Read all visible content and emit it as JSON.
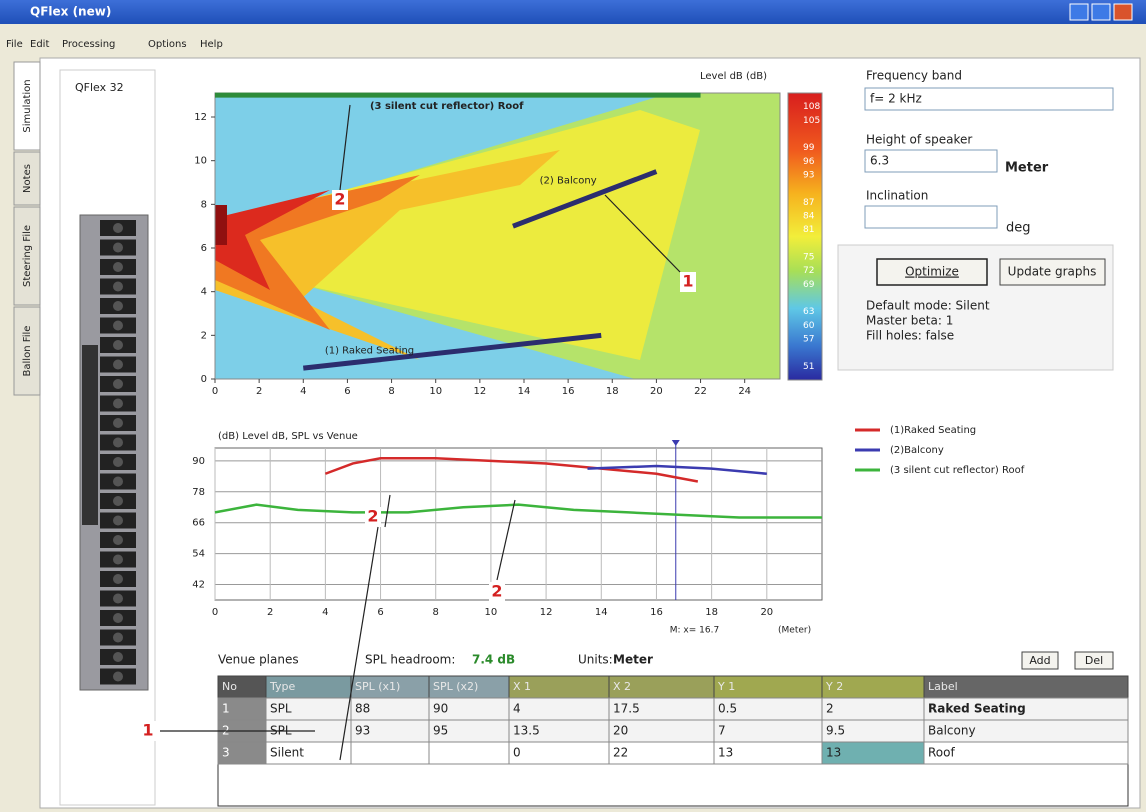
{
  "window": {
    "title": "QFlex  (new)"
  },
  "menu": [
    "File",
    "Edit",
    "Processing",
    "Options",
    "Help"
  ],
  "tabs": [
    "Simulation",
    "Notes",
    "Steering File",
    "Ballon File"
  ],
  "panel_title": "QFlex 32",
  "controls": {
    "frequency_label": "Frequency band",
    "frequency_value": "f= 2 kHz",
    "height_label": "Height of speaker",
    "height_value": "6.3",
    "height_unit": "Meter",
    "inclination_label": "Inclination",
    "inclination_unit": "deg",
    "optimize": "Optimize",
    "update": "Update graphs",
    "status": [
      "Default mode: Silent",
      "Master beta: 1",
      "Fill holes: false"
    ]
  },
  "venue": {
    "title": "Venue planes",
    "headroom_label": "SPL headroom:",
    "headroom_value": "7.4 dB",
    "units_label": "Units:",
    "units_value": "Meter",
    "add": "Add",
    "del": "Del"
  },
  "table": {
    "columns": [
      "No",
      "Type",
      "SPL (x1)",
      "SPL (x2)",
      "X 1",
      "X 2",
      "Y 1",
      "Y 2",
      "Label"
    ],
    "rows": [
      [
        "1",
        "SPL",
        "88",
        "90",
        "4",
        "17.5",
        "0.5",
        "2",
        "Raked Seating"
      ],
      [
        "2",
        "SPL",
        "93",
        "95",
        "13.5",
        "20",
        "7",
        "9.5",
        "Balcony"
      ],
      [
        "3",
        "Silent",
        "",
        "",
        "0",
        "22",
        "13",
        "13",
        "Roof"
      ]
    ]
  },
  "annotations": [
    "2",
    "1",
    "2",
    "2",
    "1"
  ],
  "chart_data": [
    {
      "type": "heatmap",
      "colorbar_title": "Level dB (dB)",
      "clim": [
        48,
        111
      ],
      "colorbar_ticks": [
        108,
        105,
        99,
        96,
        93,
        87,
        84,
        81,
        75,
        72,
        69,
        63,
        60,
        57,
        51
      ],
      "xlim": [
        0,
        25.6
      ],
      "ylim": [
        0,
        13.1
      ],
      "xticks": [
        0,
        2,
        4,
        6,
        8,
        10,
        12,
        14,
        16,
        18,
        20,
        22,
        24
      ],
      "yticks": [
        0,
        2,
        4,
        6,
        8,
        10,
        12
      ],
      "series": [
        {
          "name": "(1) Raked Seating",
          "color": "#2b2d6e",
          "x": [
            4,
            17.5
          ],
          "values": [
            0.5,
            2
          ]
        },
        {
          "name": "(2) Balcony",
          "color": "#2b2d6e",
          "x": [
            13.5,
            20
          ],
          "values": [
            7,
            9.5
          ]
        },
        {
          "name": "(3 silent cut reflector) Roof",
          "color": "#2e8b3a",
          "x": [
            0,
            22
          ],
          "values": [
            13,
            13
          ]
        }
      ]
    },
    {
      "type": "line",
      "title": "(dB) Level dB, SPL vs Venue",
      "x_label": "(Meter)",
      "xlim": [
        0,
        22
      ],
      "ylim": [
        36,
        95
      ],
      "xticks": [
        0,
        2,
        4,
        6,
        8,
        10,
        12,
        14,
        16,
        18,
        20
      ],
      "yticks": [
        42,
        54,
        66,
        78,
        90
      ],
      "grid": true,
      "marker": {
        "value": 16.7,
        "label": "M: x= 16.7"
      },
      "series": [
        {
          "name": "(1)Raked Seating",
          "color": "#d42a2a",
          "x": [
            4,
            5,
            6,
            8,
            10,
            12,
            14,
            16,
            17.5
          ],
          "values": [
            85,
            89,
            91,
            91,
            90,
            89,
            87,
            85,
            82
          ]
        },
        {
          "name": "(2)Balcony",
          "color": "#3b3bb0",
          "x": [
            13.5,
            16,
            18,
            20
          ],
          "values": [
            87,
            88,
            87,
            85
          ]
        },
        {
          "name": "(3 silent cut reflector) Roof",
          "color": "#3cb43c",
          "x": [
            0,
            1.5,
            3,
            5,
            7,
            9,
            11,
            13,
            15,
            17,
            19,
            22
          ],
          "values": [
            70,
            73,
            71,
            70,
            70,
            72,
            73,
            71,
            70,
            69,
            68,
            68
          ]
        }
      ]
    }
  ]
}
